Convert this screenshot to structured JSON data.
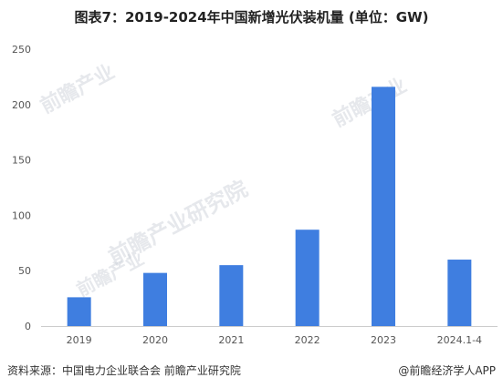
{
  "title": "图表7：2019-2024年中国新增光伏装机量 (单位：GW)",
  "footer": {
    "source": "资料来源：中国电力企业联合会 前瞻产业研究院",
    "credit": "@前瞻经济学人APP"
  },
  "watermark": {
    "brand": "前瞻产业研究院",
    "logo": "前瞻产业"
  },
  "colors": {
    "bar": "#3f7ee0",
    "axis": "#cccccc",
    "text": "#555555"
  },
  "chart_data": {
    "type": "bar",
    "categories": [
      "2019",
      "2020",
      "2021",
      "2022",
      "2023",
      "2024.1-4"
    ],
    "values": [
      26,
      48,
      55,
      87,
      216,
      60
    ],
    "ylim": [
      0,
      250
    ],
    "yticks": [
      0,
      50,
      100,
      150,
      200,
      250
    ],
    "title": "图表7：2019-2024年中国新增光伏装机量 (单位：GW)",
    "xlabel": "",
    "ylabel": "",
    "grid": false,
    "legend": "none"
  }
}
